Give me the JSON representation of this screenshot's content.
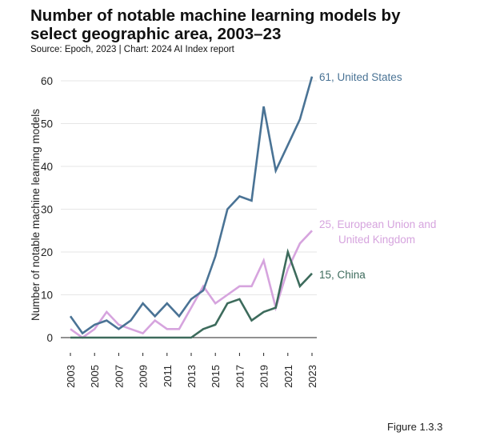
{
  "chart_data": {
    "type": "line",
    "title": "Number of notable machine learning models by select geographic area, 2003–23",
    "source": "Source: Epoch, 2023 | Chart: 2024 AI Index report",
    "xlabel": "",
    "ylabel": "Number of notable machine learning models",
    "ylim": [
      0,
      60
    ],
    "yticks": [
      "0",
      "10",
      "20",
      "30",
      "40",
      "50",
      "60"
    ],
    "x": [
      2003,
      2004,
      2005,
      2006,
      2007,
      2008,
      2009,
      2010,
      2011,
      2012,
      2013,
      2014,
      2015,
      2016,
      2017,
      2018,
      2019,
      2020,
      2021,
      2022,
      2023
    ],
    "xticks": [
      "2003",
      "2005",
      "2007",
      "2009",
      "2011",
      "2013",
      "2015",
      "2017",
      "2019",
      "2021",
      "2023"
    ],
    "grid": "horizontal",
    "series": [
      {
        "name": "United States",
        "label_lines": [
          "61, United States"
        ],
        "color": "#4a7395",
        "values": [
          5,
          1,
          3,
          4,
          2,
          4,
          8,
          5,
          8,
          5,
          9,
          11,
          19,
          30,
          33,
          32,
          54,
          39,
          45,
          51,
          61
        ]
      },
      {
        "name": "European Union and United Kingdom",
        "label_lines": [
          "25, European Union and",
          "United Kingdom"
        ],
        "color": "#d6a4de",
        "values": [
          2,
          0,
          2,
          6,
          3,
          2,
          1,
          4,
          2,
          2,
          7,
          12,
          8,
          10,
          12,
          12,
          18,
          7,
          16,
          22,
          25
        ]
      },
      {
        "name": "China",
        "label_lines": [
          "15, China"
        ],
        "color": "#3d6b5c",
        "values": [
          0,
          0,
          0,
          0,
          0,
          0,
          0,
          0,
          0,
          0,
          0,
          2,
          3,
          8,
          9,
          4,
          6,
          7,
          20,
          12,
          15
        ]
      }
    ]
  },
  "figure_label": "Figure 1.3.3"
}
